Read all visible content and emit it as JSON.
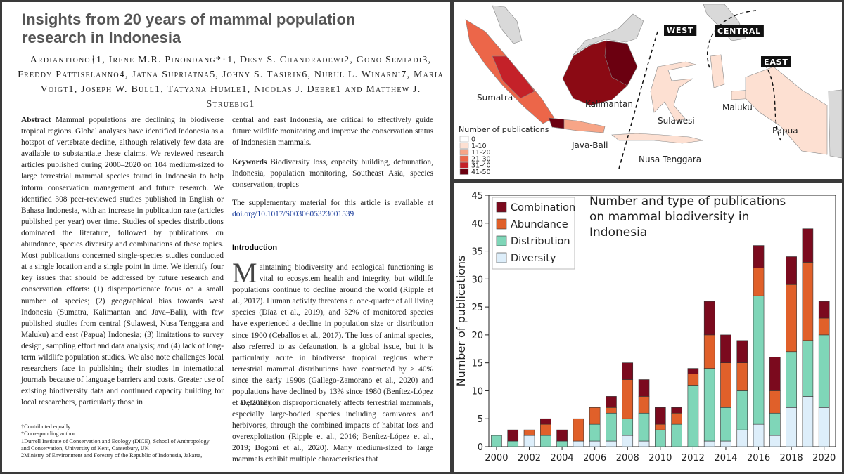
{
  "paper": {
    "title": "Insights from 20 years of mammal population research in Indonesia",
    "authors": "Ardiantiono†1, Irene M.R. Pinondang*†1, Desy S. Chandradewi2, Gono Semiadi3, Freddy Pattiselanno4, Jatna Supriatna5, Johny S. Tasirin6, Nurul L. Winarni7, Maria Voigt1, Joseph W. Bull1, Tatyana Humle1, Nicolas J. Deere1 and Matthew J. Struebig1",
    "abstract_label": "Abstract",
    "abstract": [
      "Mammal populations are declining in biodiverse tropical regions. Global analyses have identified Indonesia as a hotspot of vertebrate decline, although relatively few data are available to substantiate these claims. We reviewed research articles published during 2000–2020 on 104 medium-sized to large terrestrial mammal species found in Indonesia to help inform conservation management and future research. We identified 308 peer-reviewed studies published in English or Bahasa Indonesia, with an increase in publication rate (articles published per year) over time. Studies of species distributions dominated the literature, followed by publications on abundance, species diversity and combinations of these topics. Most publications concerned single-species studies conducted at a single location and a single point in time. We identify four key issues that should be addressed by future research and conservation efforts: (1) disproportionate focus on a small number of species; (2) geographical bias towards west Indonesia (Sumatra, Kalimantan and Java–Bali), with few published studies from central (Sulawesi, Nusa Tenggara and Maluku) and east (Papua) Indonesia; (3) limitations to survey design, sampling effort and data analysis; and (4) lack of long-term wildlife population studies. We also note challenges local researchers face in publishing their studies in international journals because of language barriers and costs. Greater use of existing biodiversity data and continued capacity building for local researchers, particularly those in",
      "central and east Indonesia, are critical to effectively guide future wildlife monitoring and improve the conservation status of Indonesian mammals."
    ],
    "keywords_label": "Keywords",
    "keywords": "Biodiversity loss, capacity building, defaunation, Indonesia, population monitoring, Southeast Asia, species conservation, tropics",
    "supplementary": "The supplementary material for this article is available at",
    "supplementary_link": "doi.org/10.1017/S0030605323001539",
    "introduction_heading": "Introduction",
    "introduction": [
      "Maintaining biodiversity and ecological functioning is vital to ecosystem health and integrity, but wildlife populations continue to decline around the world (Ripple et al., 2017). Human activity threatens c. one-quarter of all living species (Díaz et al., 2019), and 32% of monitored species have experienced a decline in population size or distribution since 1900 (Ceballos et al., 2017). The loss of animal species, also referred to as defaunation, is a global issue, but it is particularly acute in biodiverse tropical regions where terrestrial mammal distributions have contracted by > 40% since the early 1990s (Gallego-Zamorano et al., 2020) and populations have declined by 13% since 1980 (Benítez-López et al., 2019).",
      "Defaunation disproportionately affects terrestrial mammals, especially large-bodied species including carnivores and herbivores, through the combined impacts of habitat loss and overexploitation (Ripple et al., 2016; Benítez-López et al., 2019; Bogoni et al., 2020). Many medium-sized to large mammals exhibit multiple characteristics that"
    ],
    "footnotes": [
      "†Contributed equally.",
      "*Corresponding author",
      "1Durrell Institute of Conservation and Ecology (DICE), School of Anthropology and Conservation, University of Kent, Canterbury, UK",
      "2Ministry of Environment and Forestry of the Republic of Indonesia, Jakarta,"
    ]
  },
  "map": {
    "regions": [
      "WEST",
      "CENTRAL",
      "EAST"
    ],
    "islands": [
      "Sumatra",
      "Kalimantan",
      "Sulawesi",
      "Maluku",
      "Papua",
      "Java-Bali",
      "Nusa Tenggara"
    ],
    "legend_title": "Number of publications",
    "legend": [
      {
        "label": "0",
        "color": "#ffffff"
      },
      {
        "label": "1-10",
        "color": "#fde0d2"
      },
      {
        "label": "11-20",
        "color": "#f7a587"
      },
      {
        "label": "21-30",
        "color": "#ec6649"
      },
      {
        "label": "31-40",
        "color": "#c42129"
      },
      {
        "label": "41-50",
        "color": "#6b0010"
      }
    ]
  },
  "chart_data": {
    "type": "bar",
    "stacked": true,
    "title": "Number and type of publications on mammal biodiversity in Indonesia",
    "ylabel": "Number of publications",
    "x": [
      2000,
      2001,
      2002,
      2003,
      2004,
      2005,
      2006,
      2007,
      2008,
      2009,
      2010,
      2011,
      2012,
      2013,
      2014,
      2015,
      2016,
      2017,
      2018,
      2019,
      2020
    ],
    "xlim": [
      1999.53,
      2020.7
    ],
    "xticks": [
      2000,
      2002,
      2004,
      2006,
      2008,
      2010,
      2012,
      2014,
      2016,
      2018,
      2020
    ],
    "ylim": [
      0,
      45
    ],
    "yticks": [
      0,
      5,
      10,
      15,
      20,
      25,
      30,
      35,
      40,
      45
    ],
    "legend": "upper left",
    "series": [
      {
        "name": "Diversity",
        "color": "#ddeefa",
        "values": [
          0,
          0,
          2,
          0,
          0,
          1,
          1,
          1,
          2,
          1,
          0,
          0,
          0,
          1,
          1,
          3,
          4,
          2,
          7,
          9,
          7
        ]
      },
      {
        "name": "Distribution",
        "color": "#7fd6b8",
        "values": [
          2,
          1,
          0,
          2,
          1,
          0,
          3,
          5,
          3,
          5,
          3,
          4,
          11,
          13,
          6,
          7,
          23,
          4,
          10,
          10,
          13
        ]
      },
      {
        "name": "Abundance",
        "color": "#e0602a",
        "values": [
          0,
          0,
          1,
          2,
          0,
          4,
          3,
          1,
          7,
          3,
          1,
          2,
          2,
          6,
          8,
          5,
          5,
          4,
          12,
          14,
          3
        ]
      },
      {
        "name": "Combination",
        "color": "#7b0a1e",
        "values": [
          0,
          2,
          0,
          1,
          2,
          0,
          0,
          2,
          3,
          3,
          3,
          1,
          1,
          6,
          5,
          4,
          4,
          6,
          5,
          6,
          3
        ]
      }
    ]
  }
}
